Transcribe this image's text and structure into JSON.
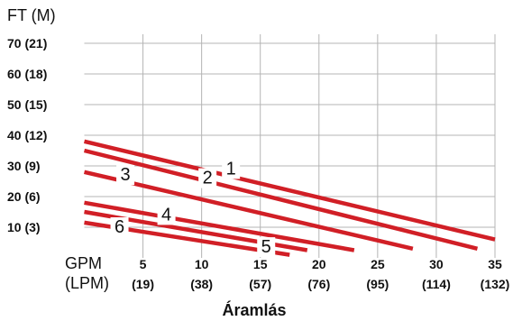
{
  "chart_data": {
    "type": "line",
    "title": "",
    "ylabel": "FT (M)",
    "xlabel": "Áramlás",
    "x_unit_labels": [
      "GPM",
      "(LPM)"
    ],
    "ylim": [
      0,
      70
    ],
    "xlim": [
      0,
      35
    ],
    "grid": true,
    "y_ticks": [
      {
        "value": 70,
        "label": "70 (21)"
      },
      {
        "value": 60,
        "label": "60 (18)"
      },
      {
        "value": 50,
        "label": "50 (15)"
      },
      {
        "value": 40,
        "label": "40 (12)"
      },
      {
        "value": 30,
        "label": "30 (9)"
      },
      {
        "value": 20,
        "label": "20 (6)"
      },
      {
        "value": 10,
        "label": "10 (3)"
      }
    ],
    "x_ticks": [
      {
        "value": 5,
        "gpm": "5",
        "lpm": "(19)"
      },
      {
        "value": 10,
        "gpm": "10",
        "lpm": "(38)"
      },
      {
        "value": 15,
        "gpm": "15",
        "lpm": "(57)"
      },
      {
        "value": 20,
        "gpm": "20",
        "lpm": "(76)"
      },
      {
        "value": 25,
        "gpm": "25",
        "lpm": "(95)"
      },
      {
        "value": 30,
        "gpm": "30",
        "lpm": "(114)"
      },
      {
        "value": 35,
        "gpm": "35",
        "lpm": "(132)"
      }
    ],
    "series": [
      {
        "name": "1",
        "label_at": [
          12.5,
          29
        ],
        "points": [
          [
            0,
            38
          ],
          [
            35,
            6
          ]
        ]
      },
      {
        "name": "2",
        "label_at": [
          10.5,
          26
        ],
        "points": [
          [
            0,
            35
          ],
          [
            33.5,
            3
          ]
        ]
      },
      {
        "name": "3",
        "label_at": [
          3.5,
          27
        ],
        "points": [
          [
            0,
            28
          ],
          [
            28,
            3
          ]
        ]
      },
      {
        "name": "4",
        "label_at": [
          7,
          14
        ],
        "points": [
          [
            0,
            18
          ],
          [
            23,
            2.5
          ]
        ]
      },
      {
        "name": "5",
        "label_at": [
          15.5,
          3.5
        ],
        "points": [
          [
            0,
            15
          ],
          [
            19,
            2.5
          ]
        ]
      },
      {
        "name": "6",
        "label_at": [
          3,
          10
        ],
        "points": [
          [
            0,
            11.5
          ],
          [
            17.5,
            1
          ]
        ]
      }
    ],
    "line_color": "#d11f26"
  }
}
